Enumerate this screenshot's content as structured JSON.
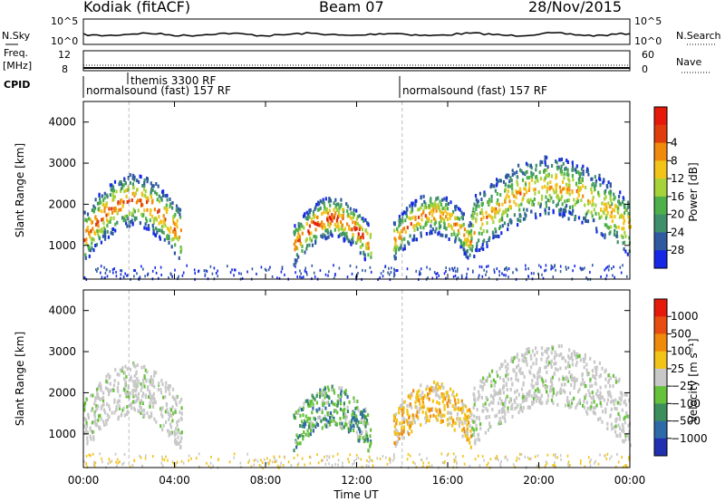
{
  "header": {
    "station": "Kodiak (fitACF)",
    "beam": "Beam 07",
    "date": "28/Nov/2015"
  },
  "strips": {
    "nsky_label": "N.Sky",
    "nsky_ticks": [
      "10^5",
      "10^0"
    ],
    "nsearch_label": "N.Search",
    "nsearch_ticks": [
      "10^5",
      "10^0"
    ],
    "freq_label_1": "Freq.",
    "freq_label_2": "[MHz]",
    "freq_ticks": [
      "12",
      "8"
    ],
    "nave_label": "Nave",
    "nave_ticks": [
      "60",
      "0"
    ],
    "cpid_label": "CPID",
    "cpid_entries": [
      "themis 3300 RF",
      "normalsound (fast) 157 RF",
      "normalsound (fast) 157 RF"
    ]
  },
  "chart_data": [
    {
      "type": "heatmap",
      "name": "power",
      "xlabel": "Time UT",
      "ylabel": "Slant Range [km]",
      "ylim": [
        180,
        4500
      ],
      "xlim": [
        "00:00",
        "24:00"
      ],
      "yticks": [
        "1000",
        "2000",
        "3000",
        "4000"
      ],
      "colorbar_label": "Power [dB]",
      "colorbar_ticks": [
        "4",
        "8",
        "12",
        "16",
        "20",
        "24",
        "28"
      ],
      "colors": [
        "#1428e6",
        "#2f5aa0",
        "#3f8f6b",
        "#4db04a",
        "#a6d23a",
        "#f2c318",
        "#f08a0a",
        "#e03c0c",
        "#e61a0a"
      ],
      "regions": [
        {
          "t": [
            0.0,
            4.3
          ],
          "range": [
            700,
            2500
          ],
          "peak_db": 24
        },
        {
          "t": [
            9.2,
            12.6
          ],
          "range": [
            600,
            2000
          ],
          "peak_db": 26
        },
        {
          "t": [
            13.6,
            17.0
          ],
          "range": [
            700,
            2100
          ],
          "peak_db": 22
        },
        {
          "t": [
            17.0,
            24.0
          ],
          "range": [
            800,
            2900
          ],
          "peak_db": 20
        }
      ]
    },
    {
      "type": "heatmap",
      "name": "velocity",
      "xlabel": "Time UT",
      "ylabel": "Slant Range [km]",
      "ylim": [
        180,
        4500
      ],
      "xlim": [
        "00:00",
        "24:00"
      ],
      "yticks": [
        "1000",
        "2000",
        "3000",
        "4000"
      ],
      "colorbar_label": "Velocity [m s⁻¹]",
      "colorbar_ticks": [
        "1000",
        "500",
        "100",
        "25",
        "−25",
        "−100",
        "−500",
        "−1000"
      ],
      "colors": [
        "#2030b0",
        "#2f6aa8",
        "#3c8f5a",
        "#66c23a",
        "#c8c8c8",
        "#f2c318",
        "#f08a0a",
        "#e84c10",
        "#e61a0a"
      ],
      "regions": [
        {
          "t": [
            0.0,
            4.3
          ],
          "range": [
            700,
            2500
          ],
          "class": "ground"
        },
        {
          "t": [
            9.2,
            12.6
          ],
          "range": [
            600,
            2000
          ],
          "class": "toward"
        },
        {
          "t": [
            13.6,
            17.0
          ],
          "range": [
            700,
            2100
          ],
          "class": "away"
        },
        {
          "t": [
            17.0,
            24.0
          ],
          "range": [
            800,
            2900
          ],
          "class": "ground"
        }
      ]
    }
  ],
  "xaxis": {
    "ticks": [
      "00:00",
      "04:00",
      "08:00",
      "12:00",
      "16:00",
      "20:00",
      "00:00"
    ],
    "label": "Time UT"
  }
}
